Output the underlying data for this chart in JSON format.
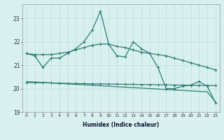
{
  "xlabel": "Humidex (Indice chaleur)",
  "x": [
    0,
    1,
    2,
    3,
    4,
    5,
    6,
    7,
    8,
    9,
    10,
    11,
    12,
    13,
    14,
    15,
    16,
    17,
    18,
    19,
    20,
    21,
    22,
    23
  ],
  "line_zigzag": [
    21.5,
    21.4,
    20.9,
    21.3,
    21.3,
    21.5,
    21.7,
    22.0,
    22.5,
    23.3,
    21.9,
    21.4,
    21.35,
    22.0,
    21.7,
    21.5,
    20.9,
    20.0,
    20.0,
    20.1,
    20.15,
    20.3,
    20.1,
    19.4
  ],
  "line_upper": [
    21.5,
    21.45,
    21.45,
    21.45,
    21.5,
    21.55,
    21.65,
    21.75,
    21.85,
    21.9,
    21.9,
    21.8,
    21.75,
    21.65,
    21.55,
    21.5,
    21.45,
    21.4,
    21.3,
    21.2,
    21.1,
    21.0,
    20.9,
    20.8
  ],
  "line_flat": [
    20.25,
    20.25,
    20.25,
    20.24,
    20.23,
    20.22,
    20.21,
    20.21,
    20.2,
    20.2,
    20.19,
    20.19,
    20.18,
    20.18,
    20.17,
    20.17,
    20.16,
    20.16,
    20.15,
    20.15,
    20.14,
    20.14,
    20.13,
    20.13
  ],
  "line_diagonal": [
    20.3,
    20.28,
    20.26,
    20.24,
    20.22,
    20.2,
    20.18,
    20.16,
    20.14,
    20.12,
    20.1,
    20.08,
    20.06,
    20.04,
    20.02,
    20.0,
    19.98,
    19.96,
    19.94,
    19.92,
    19.9,
    19.88,
    19.86,
    19.44
  ],
  "bg_color": "#d8f0f0",
  "grid_color": "#b8dede",
  "line_color": "#2e7d72",
  "ylim": [
    19.0,
    23.6
  ],
  "xlim": [
    -0.5,
    23.5
  ],
  "yticks": [
    19,
    20,
    21,
    22,
    23
  ],
  "xticks": [
    0,
    1,
    2,
    3,
    4,
    5,
    6,
    7,
    8,
    9,
    10,
    11,
    12,
    13,
    14,
    15,
    16,
    17,
    18,
    19,
    20,
    21,
    22,
    23
  ]
}
